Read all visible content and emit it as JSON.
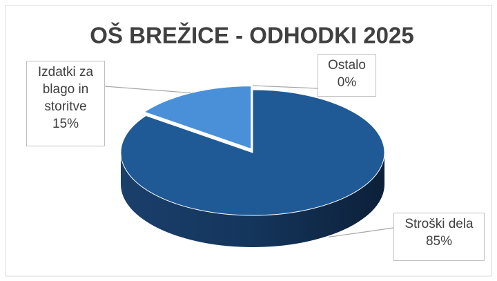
{
  "chart_data": {
    "type": "pie",
    "title": "OŠ BREŽICE - ODHODKI 2025",
    "categories": [
      "Stroški dela",
      "Izdatki za blago in storitve",
      "Ostalo"
    ],
    "values": [
      85,
      15,
      0
    ],
    "value_labels": [
      "85%",
      "15%",
      "0%"
    ],
    "colors": [
      "#1f5a96",
      "#4a90d9",
      "#a5a5a5"
    ]
  }
}
